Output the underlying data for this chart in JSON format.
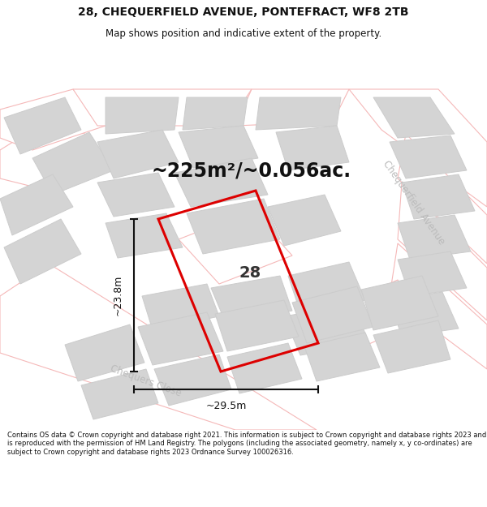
{
  "title": "28, CHEQUERFIELD AVENUE, PONTEFRACT, WF8 2TB",
  "subtitle": "Map shows position and indicative extent of the property.",
  "area_text": "~225m²/~0.056ac.",
  "property_number": "28",
  "dim_width": "~29.5m",
  "dim_height": "~23.8m",
  "street1": "Chequerfield Avenue",
  "street2": "Chequers Close",
  "footer": "Contains OS data © Crown copyright and database right 2021. This information is subject to Crown copyright and database rights 2023 and is reproduced with the permission of HM Land Registry. The polygons (including the associated geometry, namely x, y co-ordinates) are subject to Crown copyright and database rights 2023 Ordnance Survey 100026316.",
  "bg_color": "#ffffff",
  "map_bg": "#f2f2f2",
  "plot_edge": "#dd0000",
  "building_color": "#d4d4d4",
  "building_edge": "#cccccc",
  "road_fill": "#ffffff",
  "road_edge": "#f5b8b8",
  "title_color": "#111111",
  "footer_color": "#111111",
  "dim_color": "#111111",
  "street_color": "#bbbbbb",
  "area_color": "#111111"
}
